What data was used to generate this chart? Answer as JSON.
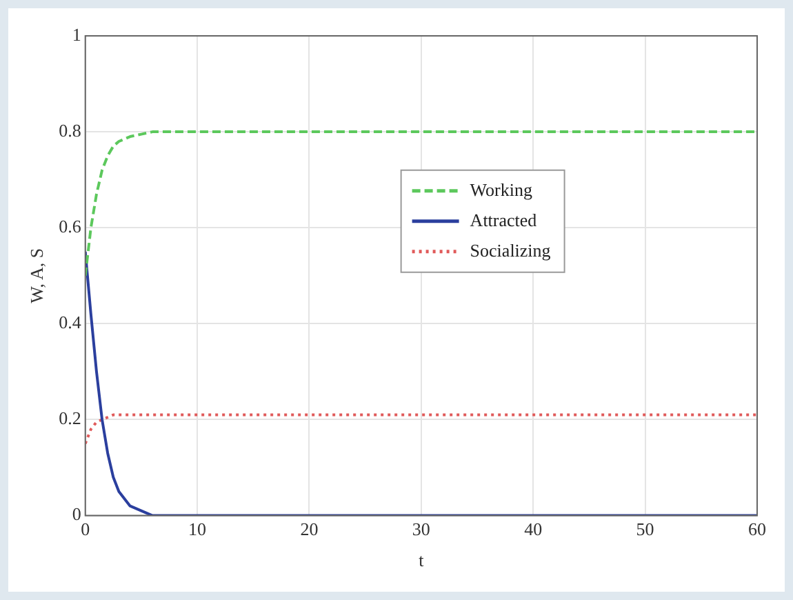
{
  "chart_data": {
    "type": "line",
    "xlabel": "t",
    "ylabel": "W, A, S",
    "x": [
      0,
      0.5,
      1,
      1.5,
      2,
      2.5,
      3,
      4,
      5,
      6,
      8,
      10,
      15,
      20,
      30,
      40,
      50,
      60
    ],
    "series": [
      {
        "name": "Working",
        "color": "#5cc85c",
        "line_style": "dashed",
        "values": [
          0.5,
          0.6,
          0.67,
          0.72,
          0.75,
          0.77,
          0.78,
          0.79,
          0.795,
          0.8,
          0.8,
          0.8,
          0.8,
          0.8,
          0.8,
          0.8,
          0.8,
          0.8
        ]
      },
      {
        "name": "Attracted",
        "color": "#2b3f9e",
        "line_style": "solid",
        "values": [
          0.55,
          0.42,
          0.3,
          0.2,
          0.13,
          0.08,
          0.05,
          0.02,
          0.01,
          0,
          0,
          0,
          0,
          0,
          0,
          0,
          0,
          0
        ]
      },
      {
        "name": "Socializing",
        "color": "#e05a5a",
        "line_style": "dotted",
        "values": [
          0.15,
          0.18,
          0.195,
          0.2,
          0.205,
          0.21,
          0.21,
          0.21,
          0.21,
          0.21,
          0.21,
          0.21,
          0.21,
          0.21,
          0.21,
          0.21,
          0.21,
          0.21
        ]
      }
    ],
    "xlim": [
      0,
      60
    ],
    "xticks": [
      0,
      10,
      20,
      30,
      40,
      50,
      60
    ],
    "ylim": [
      0,
      1
    ],
    "yticks": [
      0,
      0.2,
      0.4,
      0.6,
      0.8,
      1
    ],
    "grid": true,
    "legend": "right",
    "marker": "none"
  }
}
